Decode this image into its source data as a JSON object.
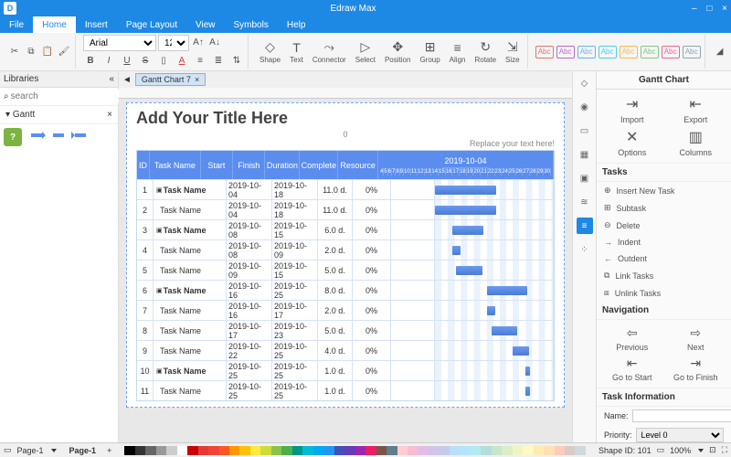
{
  "app": {
    "name": "Edraw Max"
  },
  "winbtns": {
    "min": "–",
    "max": "□",
    "close": "×"
  },
  "menu": {
    "items": [
      "File",
      "Home",
      "Insert",
      "Page Layout",
      "View",
      "Symbols",
      "Help"
    ],
    "active": 1
  },
  "ribbon": {
    "font": "Arial",
    "size": "12",
    "tools": [
      {
        "n": "shape",
        "l": "Shape"
      },
      {
        "n": "text",
        "l": "Text"
      },
      {
        "n": "connector",
        "l": "Connector"
      },
      {
        "n": "select",
        "l": "Select"
      },
      {
        "n": "position",
        "l": "Position"
      },
      {
        "n": "group",
        "l": "Group"
      },
      {
        "n": "align",
        "l": "Align"
      },
      {
        "n": "rotate",
        "l": "Rotate"
      },
      {
        "n": "size",
        "l": "Size"
      }
    ],
    "swatches": [
      "#e57373",
      "#ba68c8",
      "#64b5f6",
      "#4dd0e1",
      "#ffb74d",
      "#81c784",
      "#f06292",
      "#90a4ae"
    ]
  },
  "left": {
    "title": "Libraries",
    "search_ph": "search",
    "cat": "Gantt"
  },
  "doc": {
    "tab": "Gantt Chart 7",
    "title": "Add Your Title Here",
    "subtitle": "Replace your text here!",
    "zero": "0"
  },
  "gantt": {
    "cols": [
      "ID",
      "Task Name",
      "Start",
      "Finish",
      "Duration",
      "Complete",
      "Resource"
    ],
    "timeline_date": "2019-10-04",
    "days": [
      4,
      5,
      6,
      7,
      8,
      9,
      10,
      11,
      12,
      13,
      14,
      15,
      16,
      17,
      18,
      19,
      20,
      21,
      22,
      23,
      24,
      25,
      26,
      27,
      28,
      29,
      30
    ],
    "rows": [
      {
        "id": 1,
        "tn": "Task Name",
        "st": "2019-10-04",
        "fn": "2019-10-18",
        "du": "11.0 d.",
        "cp": "0%",
        "bold": true,
        "bar": [
          0,
          52
        ]
      },
      {
        "id": 2,
        "tn": "Task Name",
        "st": "2019-10-04",
        "fn": "2019-10-18",
        "du": "11.0 d.",
        "cp": "0%",
        "bold": false,
        "bar": [
          0,
          52
        ]
      },
      {
        "id": 3,
        "tn": "Task Name",
        "st": "2019-10-08",
        "fn": "2019-10-15",
        "du": "6.0 d.",
        "cp": "0%",
        "bold": true,
        "bar": [
          15,
          26
        ]
      },
      {
        "id": 4,
        "tn": "Task Name",
        "st": "2019-10-08",
        "fn": "2019-10-09",
        "du": "2.0 d.",
        "cp": "0%",
        "bold": false,
        "bar": [
          15,
          7
        ]
      },
      {
        "id": 5,
        "tn": "Task Name",
        "st": "2019-10-09",
        "fn": "2019-10-15",
        "du": "5.0 d.",
        "cp": "0%",
        "bold": false,
        "bar": [
          18,
          22
        ]
      },
      {
        "id": 6,
        "tn": "Task Name",
        "st": "2019-10-16",
        "fn": "2019-10-25",
        "du": "8.0 d.",
        "cp": "0%",
        "bold": true,
        "bar": [
          44,
          34
        ]
      },
      {
        "id": 7,
        "tn": "Task Name",
        "st": "2019-10-16",
        "fn": "2019-10-17",
        "du": "2.0 d.",
        "cp": "0%",
        "bold": false,
        "bar": [
          44,
          7
        ]
      },
      {
        "id": 8,
        "tn": "Task Name",
        "st": "2019-10-17",
        "fn": "2019-10-23",
        "du": "5.0 d.",
        "cp": "0%",
        "bold": false,
        "bar": [
          48,
          22
        ]
      },
      {
        "id": 9,
        "tn": "Task Name",
        "st": "2019-10-22",
        "fn": "2019-10-25",
        "du": "4.0 d.",
        "cp": "0%",
        "bold": false,
        "bar": [
          66,
          14
        ]
      },
      {
        "id": 10,
        "tn": "Task Name",
        "st": "2019-10-25",
        "fn": "2019-10-25",
        "du": "1.0 d.",
        "cp": "0%",
        "bold": true,
        "bar": [
          77,
          4
        ]
      },
      {
        "id": 11,
        "tn": "Task Name",
        "st": "2019-10-25",
        "fn": "2019-10-25",
        "du": "1.0 d.",
        "cp": "0%",
        "bold": false,
        "bar": [
          77,
          4
        ]
      }
    ]
  },
  "right": {
    "title": "Gantt Chart",
    "top": [
      {
        "n": "import",
        "l": "Import"
      },
      {
        "n": "export",
        "l": "Export"
      },
      {
        "n": "options",
        "l": "Options"
      },
      {
        "n": "columns",
        "l": "Columns"
      }
    ],
    "tasks_hdr": "Tasks",
    "tasks": [
      {
        "n": "insert",
        "l": "Insert New Task"
      },
      {
        "n": "subtask",
        "l": "Subtask"
      },
      {
        "n": "delete",
        "l": "Delete"
      },
      {
        "n": "indent",
        "l": "Indent"
      },
      {
        "n": "outdent",
        "l": "Outdent"
      },
      {
        "n": "link",
        "l": "Link Tasks"
      },
      {
        "n": "unlink",
        "l": "Unlink Tasks"
      }
    ],
    "nav_hdr": "Navigation",
    "nav": [
      {
        "n": "prev",
        "l": "Previous"
      },
      {
        "n": "next",
        "l": "Next"
      },
      {
        "n": "gostart",
        "l": "Go to Start"
      },
      {
        "n": "gofinish",
        "l": "Go to Finish"
      }
    ],
    "info_hdr": "Task Information",
    "name_l": "Name:",
    "prio_l": "Priority:",
    "prio_v": "Level 0"
  },
  "status": {
    "page": "Page-1",
    "shape": "Shape ID: 101",
    "zoom": "100%"
  },
  "palette": [
    "#000",
    "#333",
    "#666",
    "#999",
    "#ccc",
    "#fff",
    "#c00",
    "#e53935",
    "#f44336",
    "#ff5722",
    "#ff9800",
    "#ffc107",
    "#ffeb3b",
    "#cddc39",
    "#8bc34a",
    "#4caf50",
    "#009688",
    "#00bcd4",
    "#03a9f4",
    "#2196f3",
    "#3f51b5",
    "#673ab7",
    "#9c27b0",
    "#e91e63",
    "#795548",
    "#607d8b",
    "#ffcdd2",
    "#f8bbd0",
    "#e1bee7",
    "#d1c4e9",
    "#c5cae9",
    "#bbdefb",
    "#b3e5fc",
    "#b2ebf2",
    "#b2dfdb",
    "#c8e6c9",
    "#dcedc8",
    "#f0f4c3",
    "#fff9c4",
    "#ffecb3",
    "#ffe0b2",
    "#ffccbc",
    "#d7ccc8",
    "#cfd8dc"
  ]
}
